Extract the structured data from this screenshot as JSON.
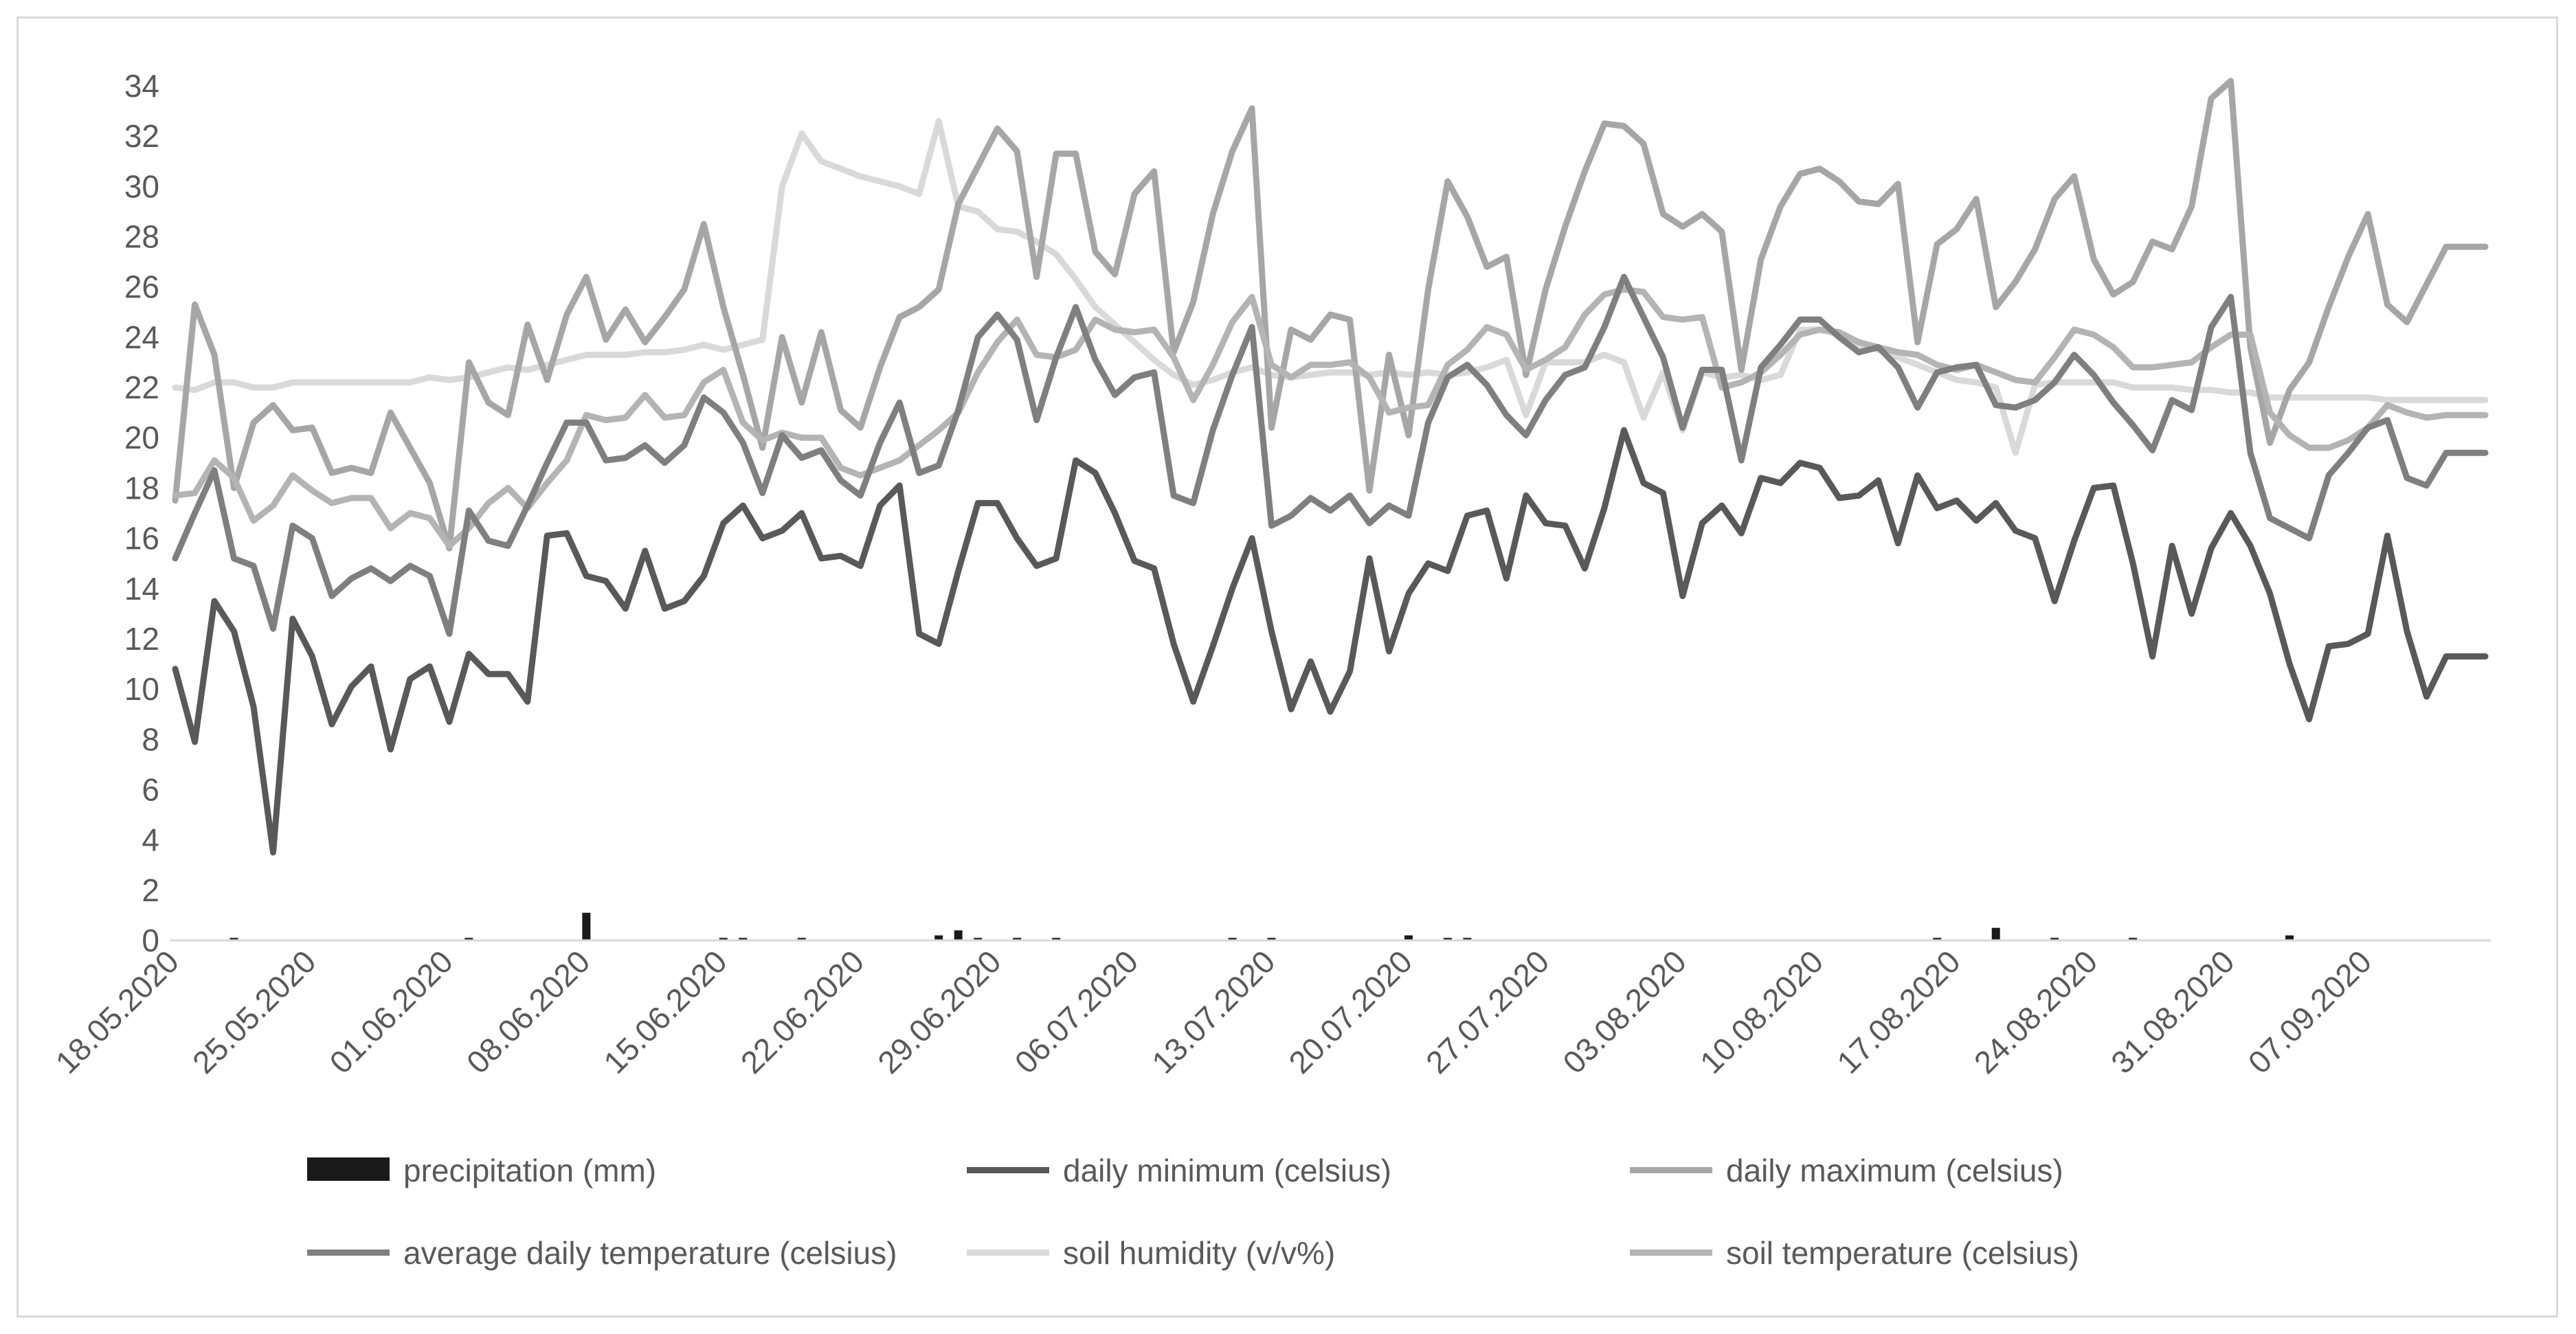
{
  "chart_data": {
    "type": "line",
    "title": "",
    "xlabel": "",
    "ylabel": "",
    "ylim": [
      0,
      34
    ],
    "yticks": [
      0,
      2,
      4,
      6,
      8,
      10,
      12,
      14,
      16,
      18,
      20,
      22,
      24,
      26,
      28,
      30,
      32,
      34
    ],
    "xtick_labels": [
      "18.05.2020",
      "25.05.2020",
      "01.06.2020",
      "08.06.2020",
      "15.06.2020",
      "22.06.2020",
      "29.06.2020",
      "06.07.2020",
      "13.07.2020",
      "20.07.2020",
      "27.07.2020",
      "03.08.2020",
      "10.08.2020",
      "17.08.2020",
      "24.08.2020",
      "31.08.2020",
      "07.09.2020"
    ],
    "xtick_every_days": 7,
    "n_days": 119,
    "grid": false,
    "legend_position": "bottom",
    "series": [
      {
        "name": "precipitation (mm)",
        "kind": "bar",
        "color": "#1a1a1a",
        "values": [
          0,
          0,
          0,
          0.1,
          0,
          0,
          0,
          0,
          0,
          0,
          0,
          0,
          0,
          0,
          0,
          0.1,
          0,
          0,
          0,
          0,
          0,
          1.1,
          0,
          0,
          0,
          0,
          0,
          0,
          0.1,
          0.1,
          0,
          0,
          0.1,
          0,
          0,
          0,
          0,
          0,
          0,
          0.2,
          0.4,
          0.1,
          0,
          0.1,
          0,
          0.1,
          0,
          0,
          0,
          0,
          0,
          0,
          0,
          0,
          0.1,
          0,
          0.1,
          0,
          0,
          0,
          0,
          0,
          0,
          0.2,
          0,
          0.1,
          0.1,
          0,
          0,
          0,
          0,
          0,
          0,
          0,
          0,
          0,
          0,
          0,
          0,
          0,
          0,
          0,
          0,
          0,
          0,
          0,
          0,
          0,
          0,
          0,
          0.1,
          0,
          0,
          0.5,
          0,
          0,
          0.1,
          0,
          0,
          0,
          0.1,
          0,
          0,
          0,
          0,
          0,
          0,
          0,
          0.2,
          0,
          0,
          0,
          0,
          0,
          0,
          0,
          0,
          0,
          0,
          0
        ]
      },
      {
        "name": "daily minimum (celsius)",
        "kind": "line",
        "color": "#595959",
        "values": [
          10.8,
          7.9,
          13.5,
          12.3,
          9.3,
          3.5,
          12.8,
          11.3,
          8.6,
          10.1,
          10.9,
          7.6,
          10.4,
          10.9,
          8.7,
          11.4,
          10.6,
          10.6,
          9.5,
          16.1,
          16.2,
          14.5,
          14.3,
          13.2,
          15.5,
          13.2,
          13.5,
          14.5,
          16.6,
          17.3,
          16.0,
          16.3,
          17.0,
          15.2,
          15.3,
          14.9,
          17.3,
          18.1,
          12.2,
          11.8,
          14.7,
          17.4,
          17.4,
          16.0,
          14.9,
          15.2,
          19.1,
          18.6,
          17.0,
          15.1,
          14.8,
          11.8,
          9.5,
          11.7,
          14.0,
          16.0,
          12.3,
          9.2,
          11.1,
          9.1,
          10.7,
          15.2,
          11.5,
          13.8,
          15.0,
          14.7,
          16.9,
          17.1,
          14.4,
          17.7,
          16.6,
          16.5,
          14.8,
          17.2,
          20.3,
          18.2,
          17.8,
          13.7,
          16.6,
          17.3,
          16.2,
          18.4,
          18.2,
          19.0,
          18.8,
          17.6,
          17.7,
          18.3,
          15.8,
          18.5,
          17.2,
          17.5,
          16.7,
          17.4,
          16.3,
          16.0,
          13.5,
          15.9,
          18.0,
          18.1,
          15.0,
          11.3,
          15.7,
          13.0,
          15.6,
          17.0,
          15.7,
          13.8,
          11.0,
          8.8,
          11.7,
          11.8,
          12.2,
          16.1,
          12.3,
          9.7,
          11.3,
          11.3,
          11.3
        ]
      },
      {
        "name": "daily maximum (celsius)",
        "kind": "line",
        "color": "#a6a6a6",
        "values": [
          17.5,
          25.3,
          23.3,
          18.0,
          20.6,
          21.3,
          20.3,
          20.4,
          18.6,
          18.8,
          18.6,
          21.0,
          19.6,
          18.2,
          15.6,
          23.0,
          21.4,
          20.9,
          24.5,
          22.3,
          24.9,
          26.4,
          23.9,
          25.1,
          23.8,
          24.8,
          25.9,
          28.5,
          25.2,
          22.5,
          19.6,
          24.0,
          21.4,
          24.2,
          21.1,
          20.4,
          22.8,
          24.8,
          25.2,
          25.9,
          29.3,
          30.8,
          32.3,
          31.4,
          26.4,
          31.3,
          31.3,
          27.4,
          26.5,
          29.7,
          30.6,
          23.4,
          25.4,
          28.9,
          31.4,
          33.1,
          20.4,
          24.3,
          23.9,
          24.9,
          24.7,
          17.9,
          23.3,
          20.1,
          25.9,
          30.2,
          28.8,
          26.8,
          27.2,
          22.5,
          25.9,
          28.4,
          30.6,
          32.5,
          32.4,
          31.7,
          28.9,
          28.4,
          28.9,
          28.2,
          22.7,
          27.1,
          29.2,
          30.5,
          30.7,
          30.2,
          29.4,
          29.3,
          30.1,
          23.8,
          27.7,
          28.3,
          29.5,
          25.2,
          26.2,
          27.5,
          29.5,
          30.4,
          27.1,
          25.7,
          26.2,
          27.8,
          27.5,
          29.2,
          33.5,
          34.2,
          23.6,
          19.8,
          21.9,
          23.0,
          25.2,
          27.2,
          28.9,
          25.3,
          24.6,
          26.1,
          27.6,
          27.6,
          27.6
        ]
      },
      {
        "name": "average daily temperature (celsius)",
        "kind": "line",
        "color": "#7f7f7f",
        "values": [
          15.2,
          17.0,
          18.7,
          15.2,
          14.9,
          12.4,
          16.5,
          16.0,
          13.7,
          14.4,
          14.8,
          14.3,
          14.9,
          14.5,
          12.2,
          17.1,
          15.9,
          15.7,
          17.3,
          19.0,
          20.6,
          20.6,
          19.1,
          19.2,
          19.7,
          19.0,
          19.7,
          21.6,
          21.0,
          19.8,
          17.8,
          20.1,
          19.2,
          19.5,
          18.3,
          17.7,
          19.8,
          21.4,
          18.6,
          18.9,
          21.1,
          24.0,
          24.9,
          23.9,
          20.7,
          23.2,
          25.2,
          23.1,
          21.7,
          22.4,
          22.6,
          17.7,
          17.4,
          20.3,
          22.5,
          24.4,
          16.5,
          16.9,
          17.6,
          17.1,
          17.7,
          16.6,
          17.3,
          16.9,
          20.6,
          22.4,
          22.9,
          22.1,
          20.9,
          20.1,
          21.5,
          22.5,
          22.8,
          24.4,
          26.4,
          24.8,
          23.2,
          20.4,
          22.7,
          22.7,
          19.1,
          22.8,
          23.7,
          24.7,
          24.7,
          24.0,
          23.4,
          23.6,
          22.8,
          21.2,
          22.6,
          22.8,
          22.9,
          21.3,
          21.2,
          21.5,
          22.2,
          23.3,
          22.5,
          21.4,
          20.5,
          19.5,
          21.5,
          21.1,
          24.4,
          25.6,
          19.4,
          16.8,
          16.4,
          16.0,
          18.5,
          19.4,
          20.4,
          20.7,
          18.4,
          18.1,
          19.4,
          19.4,
          19.4
        ]
      },
      {
        "name": "soil humidity (v/v%)",
        "kind": "line",
        "color": "#d9d9d9",
        "values": [
          22.0,
          21.9,
          22.2,
          22.2,
          22.0,
          22.0,
          22.2,
          22.2,
          22.2,
          22.2,
          22.2,
          22.2,
          22.2,
          22.4,
          22.3,
          22.4,
          22.6,
          22.8,
          22.7,
          22.9,
          23.1,
          23.3,
          23.3,
          23.3,
          23.4,
          23.4,
          23.5,
          23.7,
          23.5,
          23.7,
          23.9,
          30.0,
          32.1,
          31.0,
          30.7,
          30.4,
          30.2,
          30.0,
          29.7,
          32.6,
          29.2,
          29.0,
          28.3,
          28.2,
          27.8,
          27.3,
          26.3,
          25.2,
          24.5,
          23.8,
          23.1,
          22.5,
          22.1,
          22.3,
          22.6,
          22.8,
          22.5,
          22.4,
          22.5,
          22.6,
          22.6,
          22.5,
          22.6,
          22.5,
          22.6,
          22.5,
          22.6,
          22.8,
          23.1,
          20.9,
          23.0,
          23.0,
          23.0,
          23.3,
          23.0,
          20.8,
          22.6,
          20.3,
          22.6,
          22.4,
          22.5,
          22.3,
          22.5,
          24.3,
          24.3,
          24.1,
          23.7,
          23.5,
          23.2,
          22.9,
          22.6,
          22.3,
          22.2,
          22.0,
          19.4,
          22.1,
          22.2,
          22.2,
          22.2,
          22.2,
          22.0,
          22.0,
          22.0,
          21.9,
          21.9,
          21.8,
          21.8,
          21.6,
          21.6,
          21.6,
          21.6,
          21.6,
          21.6,
          21.5,
          21.5,
          21.5,
          21.5,
          21.5,
          21.5
        ]
      },
      {
        "name": "soil temperature (celsius)",
        "kind": "line",
        "color": "#b4b4b4",
        "values": [
          17.7,
          17.8,
          19.1,
          18.4,
          16.7,
          17.3,
          18.5,
          17.9,
          17.4,
          17.6,
          17.6,
          16.4,
          17.0,
          16.8,
          15.7,
          16.4,
          17.4,
          18.0,
          17.2,
          18.2,
          19.1,
          20.9,
          20.7,
          20.8,
          21.7,
          20.8,
          20.9,
          22.2,
          22.7,
          20.6,
          19.9,
          20.2,
          20.0,
          20.0,
          18.8,
          18.5,
          18.8,
          19.1,
          19.7,
          20.3,
          21.0,
          22.6,
          23.8,
          24.7,
          23.3,
          23.2,
          23.5,
          24.7,
          24.3,
          24.2,
          24.3,
          23.2,
          21.5,
          22.9,
          24.6,
          25.6,
          22.9,
          22.4,
          22.9,
          22.9,
          23.0,
          22.4,
          21.0,
          21.2,
          21.3,
          22.9,
          23.5,
          24.4,
          24.1,
          22.7,
          23.1,
          23.6,
          24.9,
          25.7,
          25.9,
          25.8,
          24.8,
          24.7,
          24.8,
          22.0,
          22.2,
          22.6,
          23.3,
          24.1,
          24.3,
          24.2,
          23.8,
          23.6,
          23.4,
          23.3,
          22.9,
          22.7,
          22.9,
          22.6,
          22.3,
          22.2,
          23.2,
          24.3,
          24.1,
          23.6,
          22.8,
          22.8,
          22.9,
          23.0,
          23.6,
          24.1,
          24.1,
          21.0,
          20.1,
          19.6,
          19.6,
          19.9,
          20.4,
          21.3,
          21.0,
          20.8,
          20.9,
          20.9,
          20.9
        ]
      }
    ]
  }
}
